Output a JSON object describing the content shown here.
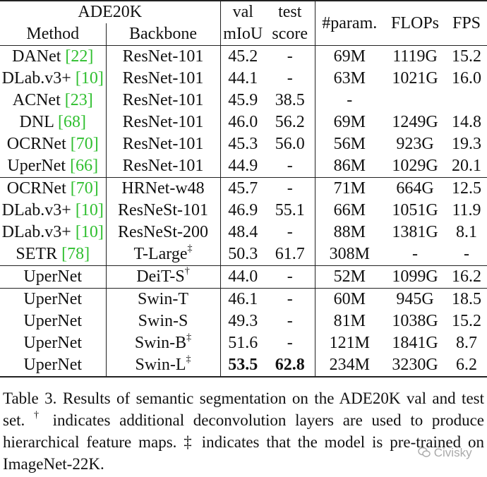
{
  "table": {
    "header_dataset": "ADE20K",
    "header_method": "Method",
    "header_backbone": "Backbone",
    "header_val_top": "val",
    "header_val_bottom": "mIoU",
    "header_test_top": "test",
    "header_test_bottom": "score",
    "header_param": "#param.",
    "header_flops": "FLOPs",
    "header_fps": "FPS",
    "groups": [
      [
        {
          "method": "DANet",
          "cite": "22",
          "backbone": "ResNet-101",
          "mark": "",
          "val": "45.2",
          "test": "-",
          "param": "69M",
          "flops": "1119G",
          "fps": "15.2"
        },
        {
          "method": "DLab.v3+",
          "cite": "10",
          "backbone": "ResNet-101",
          "mark": "",
          "val": "44.1",
          "test": "-",
          "param": "63M",
          "flops": "1021G",
          "fps": "16.0"
        },
        {
          "method": "ACNet",
          "cite": "23",
          "backbone": "ResNet-101",
          "mark": "",
          "val": "45.9",
          "test": "38.5",
          "param": "-",
          "flops": "",
          "fps": ""
        },
        {
          "method": "DNL",
          "cite": "68",
          "backbone": "ResNet-101",
          "mark": "",
          "val": "46.0",
          "test": "56.2",
          "param": "69M",
          "flops": "1249G",
          "fps": "14.8"
        },
        {
          "method": "OCRNet",
          "cite": "70",
          "backbone": "ResNet-101",
          "mark": "",
          "val": "45.3",
          "test": "56.0",
          "param": "56M",
          "flops": "923G",
          "fps": "19.3"
        },
        {
          "method": "UperNet",
          "cite": "66",
          "backbone": "ResNet-101",
          "mark": "",
          "val": "44.9",
          "test": "-",
          "param": "86M",
          "flops": "1029G",
          "fps": "20.1"
        }
      ],
      [
        {
          "method": "OCRNet",
          "cite": "70",
          "backbone": "HRNet-w48",
          "mark": "",
          "val": "45.7",
          "test": "-",
          "param": "71M",
          "flops": "664G",
          "fps": "12.5"
        },
        {
          "method": "DLab.v3+",
          "cite": "10",
          "backbone": "ResNeSt-101",
          "mark": "",
          "val": "46.9",
          "test": "55.1",
          "param": "66M",
          "flops": "1051G",
          "fps": "11.9"
        },
        {
          "method": "DLab.v3+",
          "cite": "10",
          "backbone": "ResNeSt-200",
          "mark": "",
          "val": "48.4",
          "test": "-",
          "param": "88M",
          "flops": "1381G",
          "fps": "8.1"
        },
        {
          "method": "SETR",
          "cite": "78",
          "backbone": "T-Large",
          "mark": "‡",
          "val": "50.3",
          "test": "61.7",
          "param": "308M",
          "flops": "-",
          "fps": "-"
        }
      ],
      [
        {
          "method": "UperNet",
          "cite": "",
          "backbone": "DeiT-S",
          "mark": "†",
          "val": "44.0",
          "test": "-",
          "param": "52M",
          "flops": "1099G",
          "fps": "16.2"
        }
      ],
      [
        {
          "method": "UperNet",
          "cite": "",
          "backbone": "Swin-T",
          "mark": "",
          "val": "46.1",
          "test": "-",
          "param": "60M",
          "flops": "945G",
          "fps": "18.5"
        },
        {
          "method": "UperNet",
          "cite": "",
          "backbone": "Swin-S",
          "mark": "",
          "val": "49.3",
          "test": "-",
          "param": "81M",
          "flops": "1038G",
          "fps": "15.2"
        },
        {
          "method": "UperNet",
          "cite": "",
          "backbone": "Swin-B",
          "mark": "‡",
          "val": "51.6",
          "test": "-",
          "param": "121M",
          "flops": "1841G",
          "fps": "8.7"
        },
        {
          "method": "UperNet",
          "cite": "",
          "backbone": "Swin-L",
          "mark": "‡",
          "val": "53.5",
          "test": "62.8",
          "param": "234M",
          "flops": "3230G",
          "fps": "6.2",
          "bold": [
            "val",
            "test"
          ]
        }
      ]
    ]
  },
  "caption": {
    "part1": "Table 3. Results of semantic segmentation on the ADE20K val and test set.",
    "dagger": "†",
    "part2": "indicates additional deconvolution layers are used to produce hierarchical feature maps. ‡ indicates that the model is pre-trained on ImageNet-22K."
  },
  "watermark": {
    "text": "Civisky",
    "icon": "wechat-icon"
  },
  "colors": {
    "citation": "#2fbf2f"
  }
}
